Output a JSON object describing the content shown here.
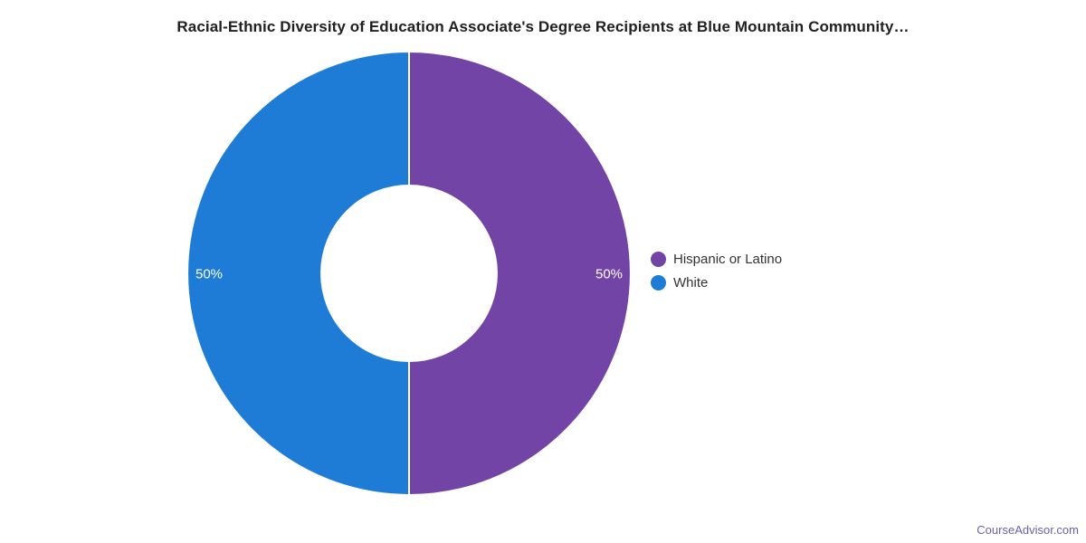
{
  "header": {
    "title": "Racial-Ethnic Diversity of Education Associate's Degree Recipients at Blue Mountain Community…"
  },
  "chart_data": {
    "type": "pie",
    "subtype": "donut",
    "title": "Racial-Ethnic Diversity of Education Associate's Degree Recipients at Blue Mountain Community…",
    "legend_position": "right",
    "start_angle_deg": 0,
    "direction": "clockwise",
    "inner_radius_ratio": 0.395,
    "slice_gap_color": "#ffffff",
    "slice_label_color": "#ffffff",
    "slices": [
      {
        "label": "Hispanic or Latino",
        "value": 50,
        "display": "50%",
        "color": "#7244a6"
      },
      {
        "label": "White",
        "value": 50,
        "display": "50%",
        "color": "#1e7cd6"
      }
    ]
  },
  "footer": {
    "watermark": "CourseAdvisor.com"
  },
  "colors": {
    "title_text": "#212121",
    "legend_text": "#333333",
    "watermark_text": "#6b5fae",
    "background": "#ffffff"
  }
}
